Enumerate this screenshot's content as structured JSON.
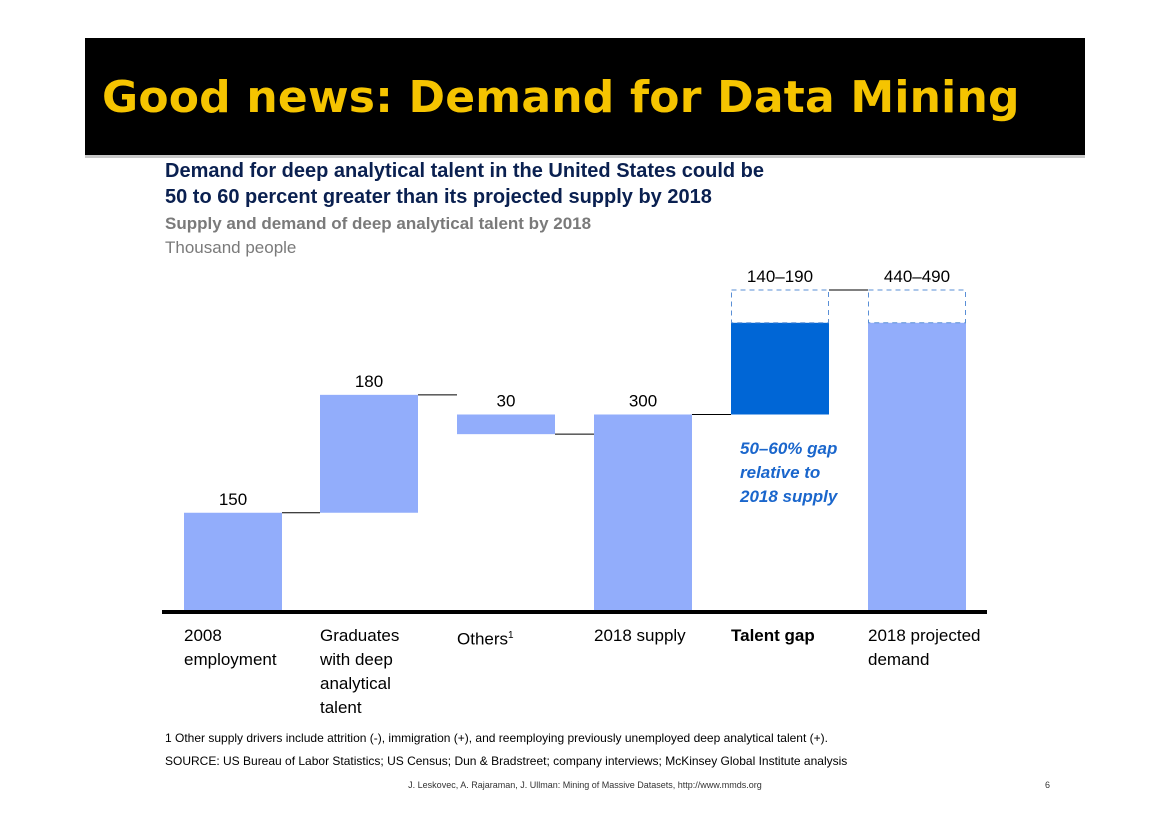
{
  "slide": {
    "title": "Good news: Demand for Data Mining",
    "headline_line1": "Demand for deep analytical talent in the United States could be",
    "headline_line2": "50 to 60 percent greater than its projected supply by 2018",
    "subtitle": "Supply and demand of deep analytical talent by 2018",
    "units": "Thousand people",
    "gap_note": [
      "50–60% gap",
      "relative to",
      "2018 supply"
    ],
    "footnote": "1  Other supply drivers include attrition (-), immigration (+), and reemploying previously unemployed deep analytical talent (+).",
    "source": "SOURCE: US Bureau of Labor Statistics; US Census; Dun & Bradstreet; company interviews; McKinsey Global Institute analysis",
    "credit": "J. Leskovec, A. Rajaraman, J. Ullman: Mining of Massive Datasets, http://www.mmds.org",
    "page_number": "6"
  },
  "chart_data": {
    "type": "bar",
    "subtype": "waterfall",
    "categories": [
      "2008 employment",
      "Graduates with deep analytical talent",
      "Others",
      "2018 supply",
      "Talent gap",
      "2018 projected demand"
    ],
    "category_lines": [
      [
        "2008",
        "employment"
      ],
      [
        "Graduates",
        "with deep",
        "analytical",
        "talent"
      ],
      [
        "Others"
      ],
      [
        "2018 supply"
      ],
      [
        "Talent gap"
      ],
      [
        "2018 projected",
        "demand"
      ]
    ],
    "category_footnote_marks": [
      "",
      "",
      "1",
      "",
      "",
      ""
    ],
    "bars": [
      {
        "base": 0,
        "value": 150,
        "label": "150",
        "kind": "total"
      },
      {
        "base": 150,
        "value": 180,
        "label": "180",
        "kind": "increment"
      },
      {
        "base": 300,
        "value": 30,
        "label": "30",
        "kind": "decrement"
      },
      {
        "base": 0,
        "value": 300,
        "label": "300",
        "kind": "total"
      },
      {
        "base": 300,
        "value": 140,
        "range_top": 190,
        "label": "140–190",
        "kind": "gap"
      },
      {
        "base": 0,
        "value": 440,
        "range_top": 490,
        "label": "440–490",
        "kind": "total"
      }
    ],
    "ylim": [
      0,
      490
    ],
    "colors": {
      "bar": "#92adfb",
      "gap": "#0066d6",
      "range_outline": "#5a8fd6",
      "axis": "#000000",
      "connector": "#000000"
    },
    "grid": false,
    "legend": "none"
  }
}
